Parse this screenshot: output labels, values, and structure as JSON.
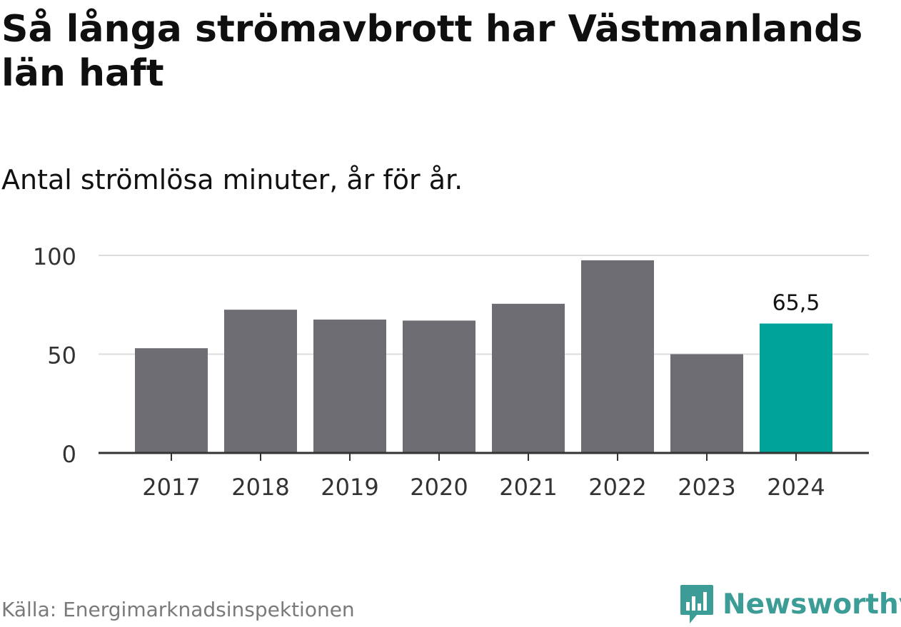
{
  "title": "Så långa strömavbrott har Västmanlands län haft",
  "subtitle": "Antal strömlösa minuter, år för år.",
  "source": "Källa: Energimarknadsinspektionen",
  "logo": {
    "text": "Newsworthy",
    "icon": "newsworthy-logo-icon",
    "color": "#3c9c96"
  },
  "colors": {
    "bar": "#6e6d73",
    "highlight": "#00a39a",
    "grid": "#dddddd",
    "axis": "#333333"
  },
  "chart_data": {
    "type": "bar",
    "categories": [
      "2017",
      "2018",
      "2019",
      "2020",
      "2021",
      "2022",
      "2023",
      "2024"
    ],
    "values": [
      53,
      72.5,
      67.5,
      67,
      75.5,
      97.5,
      50,
      65.5
    ],
    "highlight_index": 7,
    "data_labels": [
      null,
      null,
      null,
      null,
      null,
      null,
      null,
      "65,5"
    ],
    "ylim": [
      0,
      100
    ],
    "yticks": [
      0,
      50,
      100
    ],
    "grid": true,
    "xlabel": "",
    "ylabel": ""
  }
}
